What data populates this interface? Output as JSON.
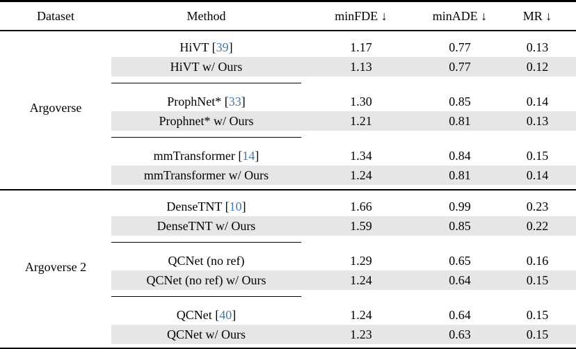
{
  "colors": {
    "row_shade": "#e6e6e6",
    "citation_blue": "#4178ae",
    "rule_black": "#000000",
    "background": "#ffffff"
  },
  "header": {
    "dataset": "Dataset",
    "method": "Method",
    "minfde": "minFDE ↓",
    "minade": "minADE ↓",
    "mr": "MR ↓"
  },
  "sections": [
    {
      "dataset": "Argoverse",
      "rows": [
        {
          "method_pre": "HiVT [",
          "cite": "39",
          "method_post": "]",
          "minfde": "1.17",
          "minade": "0.77",
          "mr": "0.13",
          "shaded": false
        },
        {
          "method_pre": "HiVT w/ Ours",
          "cite": "",
          "method_post": "",
          "minfde": "1.13",
          "minade": "0.77",
          "mr": "0.12",
          "shaded": true
        },
        {
          "method_pre": "ProphNet* [",
          "cite": "33",
          "method_post": "]",
          "minfde": "1.30",
          "minade": "0.85",
          "mr": "0.14",
          "shaded": false
        },
        {
          "method_pre": "Prophnet* w/ Ours",
          "cite": "",
          "method_post": "",
          "minfde": "1.21",
          "minade": "0.81",
          "mr": "0.13",
          "shaded": true
        },
        {
          "method_pre": "mmTransformer [",
          "cite": "14",
          "method_post": "]",
          "minfde": "1.34",
          "minade": "0.84",
          "mr": "0.15",
          "shaded": false
        },
        {
          "method_pre": "mmTransformer w/ Ours",
          "cite": "",
          "method_post": "",
          "minfde": "1.24",
          "minade": "0.81",
          "mr": "0.14",
          "shaded": true
        }
      ]
    },
    {
      "dataset": "Argoverse 2",
      "rows": [
        {
          "method_pre": "DenseTNT [",
          "cite": "10",
          "method_post": "]",
          "minfde": "1.66",
          "minade": "0.99",
          "mr": "0.23",
          "shaded": false
        },
        {
          "method_pre": "DenseTNT w/ Ours",
          "cite": "",
          "method_post": "",
          "minfde": "1.59",
          "minade": "0.85",
          "mr": "0.22",
          "shaded": true
        },
        {
          "method_pre": "QCNet (no ref)",
          "cite": "",
          "method_post": "",
          "minfde": "1.29",
          "minade": "0.65",
          "mr": "0.16",
          "shaded": false
        },
        {
          "method_pre": "QCNet (no ref) w/ Ours",
          "cite": "",
          "method_post": "",
          "minfde": "1.24",
          "minade": "0.64",
          "mr": "0.15",
          "shaded": true
        },
        {
          "method_pre": "QCNet [",
          "cite": "40",
          "method_post": "]",
          "minfde": "1.24",
          "minade": "0.64",
          "mr": "0.15",
          "shaded": false
        },
        {
          "method_pre": "QCNet w/ Ours",
          "cite": "",
          "method_post": "",
          "minfde": "1.23",
          "minade": "0.63",
          "mr": "0.15",
          "shaded": true
        }
      ]
    }
  ]
}
